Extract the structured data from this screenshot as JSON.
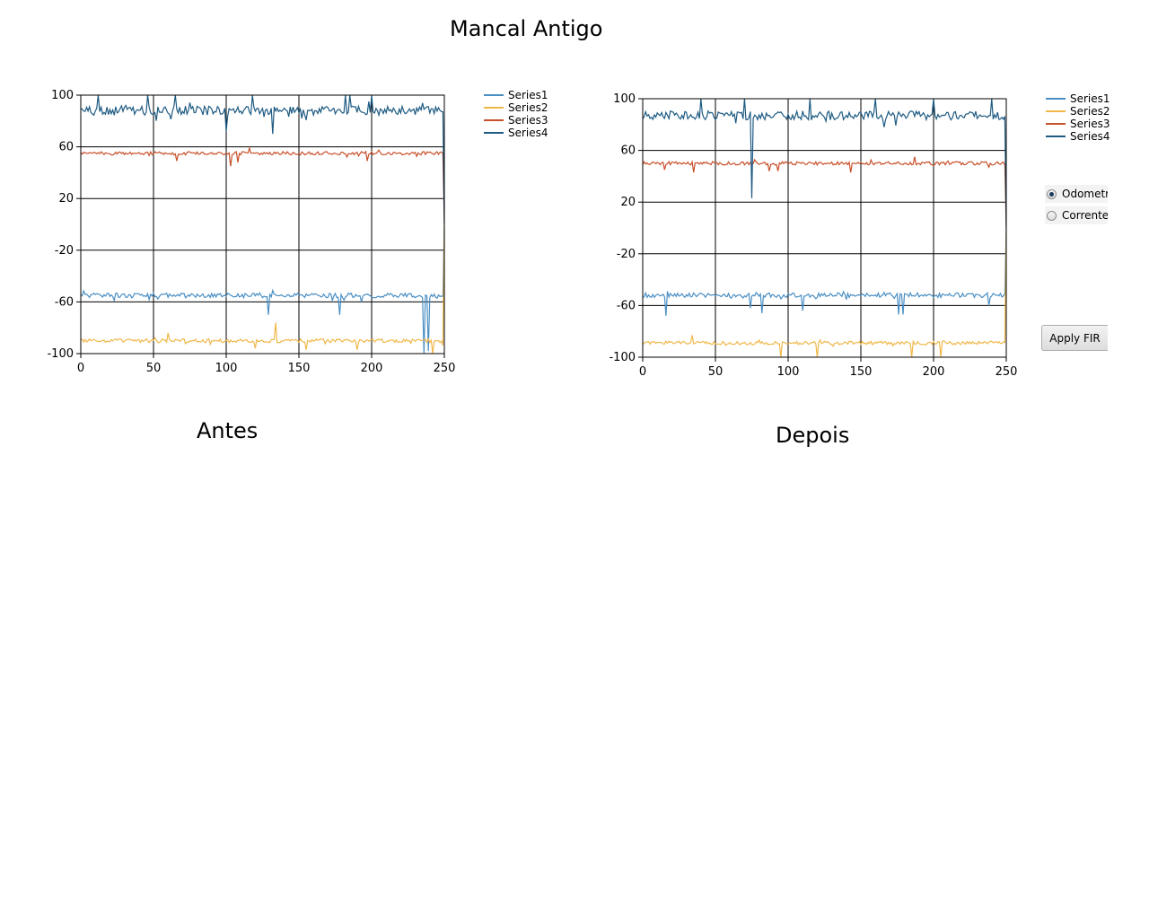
{
  "page": {
    "title": "Mancal Antigo",
    "caption_before": "Antes",
    "caption_after": "Depois"
  },
  "controls": {
    "radios": [
      {
        "label": "Odometria",
        "checked": true
      },
      {
        "label": "Corrente",
        "checked": false
      }
    ],
    "apply_button": "Apply FIR"
  },
  "chart_data": [
    {
      "type": "line",
      "xlim": [
        0,
        250
      ],
      "ylim": [
        -100,
        100
      ],
      "xticks": [
        0,
        50,
        100,
        150,
        200,
        250
      ],
      "yticks": [
        100,
        60,
        20,
        -20,
        -60,
        -100
      ],
      "grid": true,
      "legend": "top-right",
      "series": [
        {
          "name": "Series1",
          "color": "#4a8fc4",
          "base": -55,
          "noise": 1.8,
          "spikes": [
            [
              129,
              -70
            ],
            [
              178,
              -70
            ],
            [
              236,
              -100
            ],
            [
              239,
              -98
            ]
          ]
        },
        {
          "name": "Series2",
          "color": "#f0b84a",
          "base": -90,
          "noise": 1.5,
          "spikes": [
            [
              134,
              -76
            ],
            [
              60,
              -84
            ],
            [
              120,
              -96
            ],
            [
              155,
              -97
            ],
            [
              190,
              -97
            ],
            [
              242,
              -100
            ]
          ]
        },
        {
          "name": "Series3",
          "color": "#c8502a",
          "base": 55,
          "noise": 1.3,
          "spikes": [
            [
              66,
              49
            ],
            [
              103,
              45
            ],
            [
              108,
              48
            ],
            [
              197,
              49
            ],
            [
              116,
              59
            ]
          ]
        },
        {
          "name": "Series4",
          "color": "#1e5b82",
          "base": 88,
          "noise": 3.5,
          "spikes": [
            [
              12,
              100
            ],
            [
              46,
              100
            ],
            [
              65,
              100
            ],
            [
              118,
              100
            ],
            [
              182,
              100
            ],
            [
              185,
              100
            ],
            [
              200,
              100
            ],
            [
              132,
              70
            ],
            [
              100,
              72
            ]
          ]
        }
      ]
    },
    {
      "type": "line",
      "xlim": [
        0,
        250
      ],
      "ylim": [
        -100,
        100
      ],
      "xticks": [
        0,
        50,
        100,
        150,
        200,
        250
      ],
      "yticks": [
        100,
        60,
        20,
        -20,
        -60,
        -100
      ],
      "grid": true,
      "legend": "top-right",
      "series": [
        {
          "name": "Series1",
          "color": "#4a8fc4",
          "base": -52,
          "noise": 1.8,
          "spikes": [
            [
              16,
              -68
            ],
            [
              74,
              -62
            ],
            [
              82,
              -66
            ],
            [
              110,
              -64
            ],
            [
              176,
              -67
            ],
            [
              179,
              -67
            ],
            [
              238,
              -60
            ]
          ]
        },
        {
          "name": "Series2",
          "color": "#f0b84a",
          "base": -89,
          "noise": 1.4,
          "spikes": [
            [
              34,
              -83
            ],
            [
              95,
              -100
            ],
            [
              120,
              -100
            ],
            [
              185,
              -100
            ],
            [
              205,
              -100
            ]
          ]
        },
        {
          "name": "Series3",
          "color": "#c8502a",
          "base": 50,
          "noise": 1.3,
          "spikes": [
            [
              15,
              45
            ],
            [
              35,
              43
            ],
            [
              87,
              44
            ],
            [
              93,
              44
            ],
            [
              143,
              43
            ],
            [
              187,
              55
            ]
          ]
        },
        {
          "name": "Series4",
          "color": "#1e5b82",
          "base": 87,
          "noise": 3.5,
          "spikes": [
            [
              75,
              23
            ],
            [
              40,
              100
            ],
            [
              70,
              100
            ],
            [
              115,
              100
            ],
            [
              160,
              100
            ],
            [
              200,
              100
            ],
            [
              240,
              100
            ]
          ]
        }
      ]
    }
  ]
}
